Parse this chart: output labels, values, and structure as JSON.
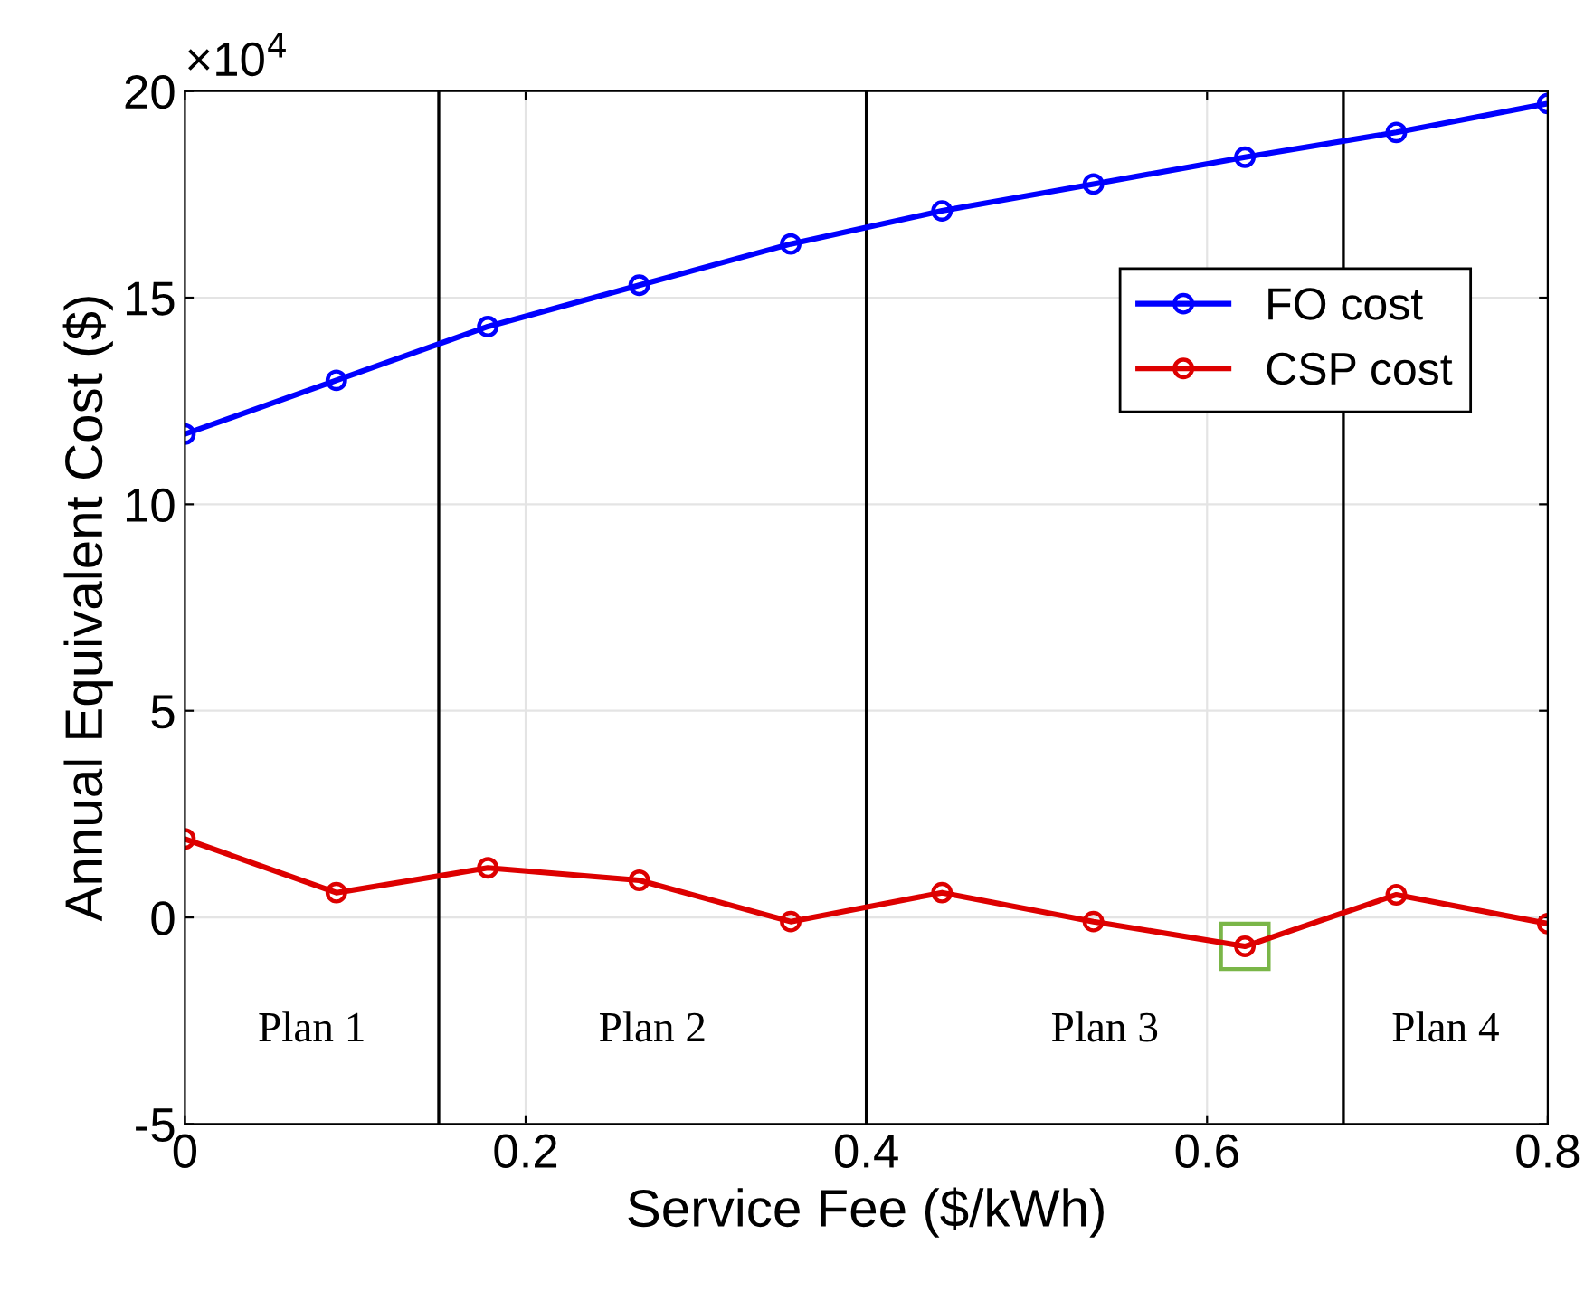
{
  "chart_data": {
    "type": "line",
    "xlabel": "Service Fee ($/kWh)",
    "ylabel": "Annual Equivalent Cost ($)",
    "x": [
      0,
      0.0889,
      0.1778,
      0.2667,
      0.3556,
      0.4444,
      0.5333,
      0.6222,
      0.7111,
      0.8
    ],
    "series": [
      {
        "name": "FO cost",
        "color": "#0000ff",
        "values": [
          11.7,
          13.0,
          14.3,
          15.3,
          16.3,
          17.1,
          17.75,
          18.4,
          19.0,
          19.7
        ]
      },
      {
        "name": "CSP cost",
        "color": "#dd0000",
        "values": [
          1.9,
          0.6,
          1.2,
          0.9,
          -0.1,
          0.6,
          -0.1,
          -0.7,
          0.55,
          -0.15
        ]
      }
    ],
    "xlim": [
      0,
      0.8
    ],
    "xticks": [
      0,
      0.2,
      0.4,
      0.6,
      0.8
    ],
    "ylim": [
      -5,
      20
    ],
    "yticks": [
      -5,
      0,
      5,
      10,
      15,
      20
    ],
    "ref_lines": [
      {
        "axis": "x",
        "value": 0.149,
        "color": "#000000"
      },
      {
        "axis": "x",
        "value": 0.4,
        "color": "#000000"
      },
      {
        "axis": "x",
        "value": 0.68,
        "color": "#000000"
      }
    ],
    "annotations": [
      "×10$^{4}$",
      "Plan 1",
      "Plan 2",
      "Plan 3",
      "Plan 4"
    ],
    "grid": true,
    "legend": "top right",
    "marker": "circle",
    "line_style": "solid"
  }
}
